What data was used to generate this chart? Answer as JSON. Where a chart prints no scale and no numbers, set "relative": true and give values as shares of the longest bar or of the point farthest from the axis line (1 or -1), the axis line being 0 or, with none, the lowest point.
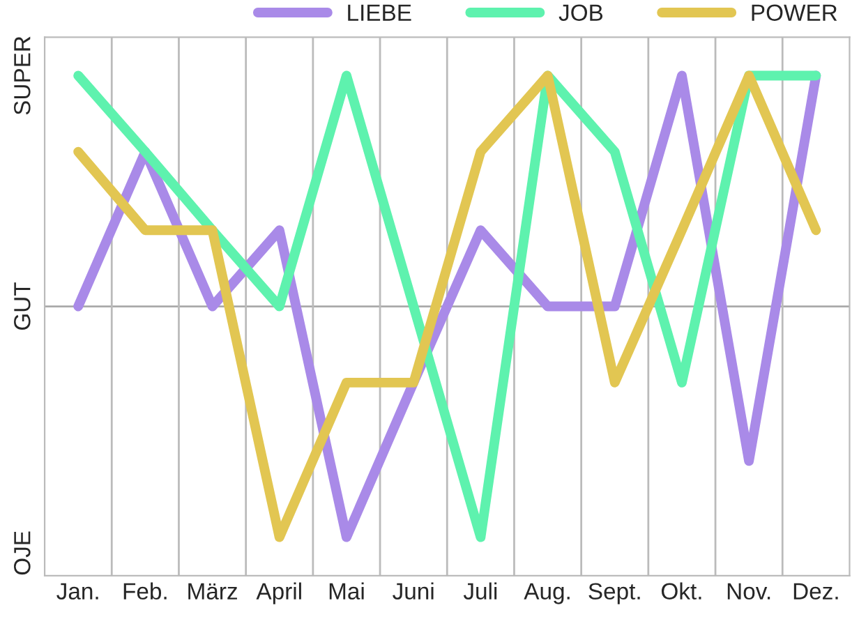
{
  "chart_data": {
    "type": "line",
    "relative": true,
    "categories": [
      "Jan.",
      "Feb.",
      "März",
      "April",
      "Mai",
      "Juni",
      "Juli",
      "Aug.",
      "Sept.",
      "Okt.",
      "Nov.",
      "Dez."
    ],
    "series": [
      {
        "name": "LIEBE",
        "color": "#a98ae8",
        "values": [
          0,
          0.67,
          0,
          0.33,
          -1,
          -0.33,
          0.33,
          0,
          0,
          1,
          -0.67,
          1
        ]
      },
      {
        "name": "JOB",
        "color": "#5ef2ae",
        "values": [
          1,
          0.67,
          0.33,
          0,
          1,
          0,
          -1,
          1,
          0.67,
          -0.33,
          1,
          1
        ]
      },
      {
        "name": "POWER",
        "color": "#e2c652",
        "values": [
          0.67,
          0.33,
          0.33,
          -1,
          -0.33,
          -0.33,
          0.67,
          1,
          -0.33,
          0.33,
          1,
          0.33
        ]
      }
    ],
    "annotations": [
      "SUPER",
      "GUT",
      "OJE"
    ],
    "ref_lines": [
      {
        "axis": "y",
        "value": 0,
        "label": null,
        "color": "#aaaaaa"
      }
    ],
    "grid": "x",
    "legend": "top right",
    "marker": "none",
    "line_style": "solid"
  }
}
